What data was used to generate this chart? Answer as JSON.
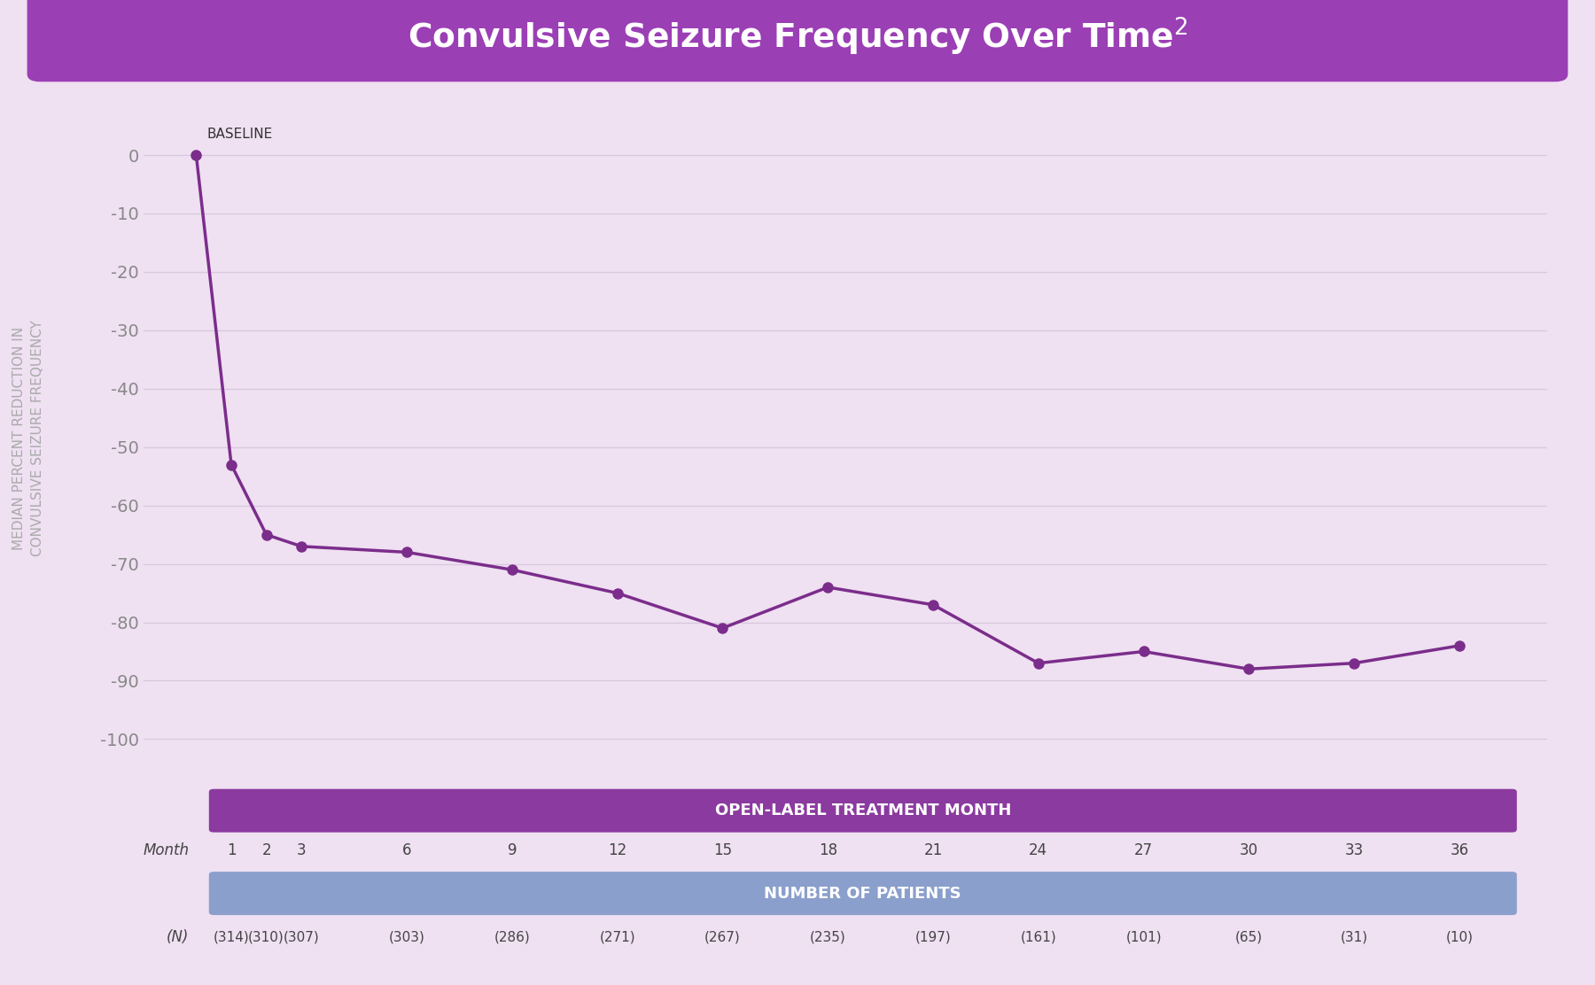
{
  "title": "Convulsive Seizure Frequency Over Time",
  "title_superscript": "2",
  "title_bg_color": "#9B3FB5",
  "title_text_color": "#FFFFFF",
  "bg_color": "#EFE0F2",
  "plot_bg_color": "#EFE0F2",
  "ylabel_line1": "MEDIAN PERCENT REDUCTION IN",
  "ylabel_line2": "CONVULSIVE SEIZURE FREQUENCY",
  "ylabel_color": "#AAAAAA",
  "line_color": "#7B2D8B",
  "marker_color": "#7B2D8B",
  "months": [
    0,
    1,
    2,
    3,
    6,
    9,
    12,
    15,
    18,
    21,
    24,
    27,
    30,
    33,
    36
  ],
  "values": [
    0,
    -53,
    -65,
    -67,
    -68,
    -71,
    -75,
    -81,
    -74,
    -77,
    -87,
    -85,
    -88,
    -87,
    -84
  ],
  "ylim": [
    -105,
    8
  ],
  "yticks": [
    0,
    -10,
    -20,
    -30,
    -40,
    -50,
    -60,
    -70,
    -80,
    -90,
    -100
  ],
  "baseline_label": "BASELINE",
  "table_header1": "OPEN-LABEL TREATMENT MONTH",
  "table_header1_bg": "#8B3A9F",
  "table_header1_text": "#FFFFFF",
  "table_header2": "NUMBER OF PATIENTS",
  "table_header2_bg": "#8B9FCC",
  "table_header2_text": "#FFFFFF",
  "table_month_label": "Month",
  "table_n_label": "(N)",
  "table_months": [
    1,
    2,
    3,
    6,
    9,
    12,
    15,
    18,
    21,
    24,
    27,
    30,
    33,
    36
  ],
  "table_n_values": [
    "(314)",
    "(310)",
    "(307)",
    "(303)",
    "(286)",
    "(271)",
    "(267)",
    "(235)",
    "(197)",
    "(161)",
    "(101)",
    "(65)",
    "(31)",
    "(10)"
  ],
  "grid_color": "#D8C8DC",
  "tick_color": "#888888",
  "xlim_min": -1.5,
  "xlim_max": 38.5
}
